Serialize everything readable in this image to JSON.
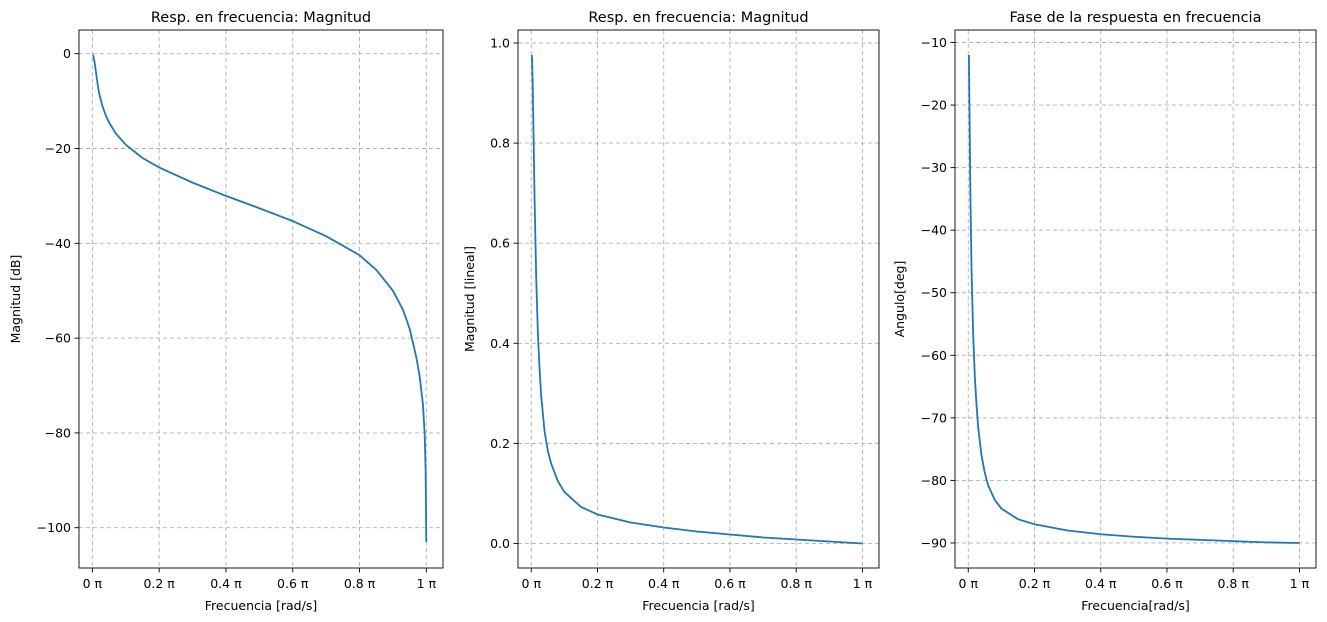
{
  "chart_data": [
    {
      "type": "line",
      "title": "Resp. en frecuencia: Magnitud",
      "xlabel": "Frecuencia [rad/s]",
      "ylabel": "Magnitud [dB]",
      "xlim": [
        -0.04,
        1.05
      ],
      "ylim": [
        -108.5,
        5
      ],
      "grid": true,
      "x_ticks": [
        0,
        0.2,
        0.4,
        0.6,
        0.8,
        1
      ],
      "x_tick_labels": [
        "0 π",
        "0.2 π",
        "0.4 π",
        "0.6 π",
        "0.8 π",
        "1 π"
      ],
      "y_ticks": [
        0,
        -20,
        -40,
        -60,
        -80,
        -100
      ],
      "y_tick_labels": [
        "0",
        "−20",
        "−40",
        "−60",
        "−80",
        "−100"
      ],
      "series": [
        {
          "color": "#1f77b4",
          "x": [
            0.002,
            0.006,
            0.01,
            0.015,
            0.02,
            0.03,
            0.04,
            0.05,
            0.07,
            0.1,
            0.15,
            0.2,
            0.3,
            0.4,
            0.5,
            0.6,
            0.7,
            0.8,
            0.85,
            0.9,
            0.93,
            0.95,
            0.97,
            0.98,
            0.99,
            0.995,
            0.998,
            1.0
          ],
          "y": [
            -0.2,
            -1.5,
            -3.5,
            -6.0,
            -8.3,
            -11.0,
            -13.0,
            -14.5,
            -16.8,
            -19.2,
            -22.0,
            -24.0,
            -27.2,
            -30.0,
            -32.6,
            -35.3,
            -38.5,
            -42.5,
            -45.6,
            -50.0,
            -54.0,
            -58.0,
            -64.0,
            -68.0,
            -74.0,
            -80.0,
            -88.0,
            -103.0
          ]
        }
      ]
    },
    {
      "type": "line",
      "title": "Resp. en frecuencia: Magnitud",
      "xlabel": "Frecuencia [rad/s]",
      "ylabel": "Magnitud [lineal]",
      "xlim": [
        -0.04,
        1.05
      ],
      "ylim": [
        -0.049,
        1.026
      ],
      "grid": true,
      "x_ticks": [
        0,
        0.2,
        0.4,
        0.6,
        0.8,
        1
      ],
      "x_tick_labels": [
        "0 π",
        "0.2 π",
        "0.4 π",
        "0.6 π",
        "0.8 π",
        "1 π"
      ],
      "y_ticks": [
        0,
        0.2,
        0.4,
        0.6,
        0.8,
        1.0
      ],
      "y_tick_labels": [
        "0.0",
        "0.2",
        "0.4",
        "0.6",
        "0.8",
        "1.0"
      ],
      "series": [
        {
          "color": "#1f77b4",
          "x": [
            0.002,
            0.004,
            0.006,
            0.008,
            0.01,
            0.015,
            0.02,
            0.025,
            0.03,
            0.04,
            0.05,
            0.06,
            0.08,
            0.1,
            0.15,
            0.2,
            0.3,
            0.4,
            0.5,
            0.6,
            0.7,
            0.8,
            0.9,
            1.0
          ],
          "y": [
            0.976,
            0.93,
            0.86,
            0.77,
            0.69,
            0.53,
            0.42,
            0.35,
            0.295,
            0.225,
            0.185,
            0.16,
            0.125,
            0.103,
            0.073,
            0.058,
            0.042,
            0.032,
            0.024,
            0.018,
            0.012,
            0.008,
            0.004,
            0.0
          ]
        }
      ]
    },
    {
      "type": "line",
      "title": "Fase de la respuesta en frecuencia",
      "xlabel": "Frecuencia[rad/s]",
      "ylabel": "Angulo[deg]",
      "xlim": [
        -0.04,
        1.05
      ],
      "ylim": [
        -94,
        -8
      ],
      "grid": true,
      "x_ticks": [
        0,
        0.2,
        0.4,
        0.6,
        0.8,
        1
      ],
      "x_tick_labels": [
        "0 π",
        "0.2 π",
        "0.4 π",
        "0.6 π",
        "0.8 π",
        "1 π"
      ],
      "y_ticks": [
        -10,
        -20,
        -30,
        -40,
        -50,
        -60,
        -70,
        -80,
        -90
      ],
      "y_tick_labels": [
        "−10",
        "−20",
        "−30",
        "−40",
        "−50",
        "−60",
        "−70",
        "−80",
        "−90"
      ],
      "series": [
        {
          "color": "#1f77b4",
          "x": [
            0.002,
            0.004,
            0.006,
            0.008,
            0.01,
            0.015,
            0.02,
            0.025,
            0.03,
            0.04,
            0.05,
            0.06,
            0.08,
            0.1,
            0.15,
            0.2,
            0.3,
            0.4,
            0.5,
            0.6,
            0.7,
            0.8,
            0.9,
            1.0
          ],
          "y": [
            -12.0,
            -22.0,
            -32.0,
            -40.0,
            -46.5,
            -57.0,
            -63.5,
            -68.0,
            -71.5,
            -76.0,
            -78.8,
            -80.8,
            -83.1,
            -84.5,
            -86.2,
            -87.0,
            -88.0,
            -88.6,
            -89.0,
            -89.3,
            -89.5,
            -89.7,
            -89.9,
            -90.0
          ]
        }
      ]
    }
  ]
}
